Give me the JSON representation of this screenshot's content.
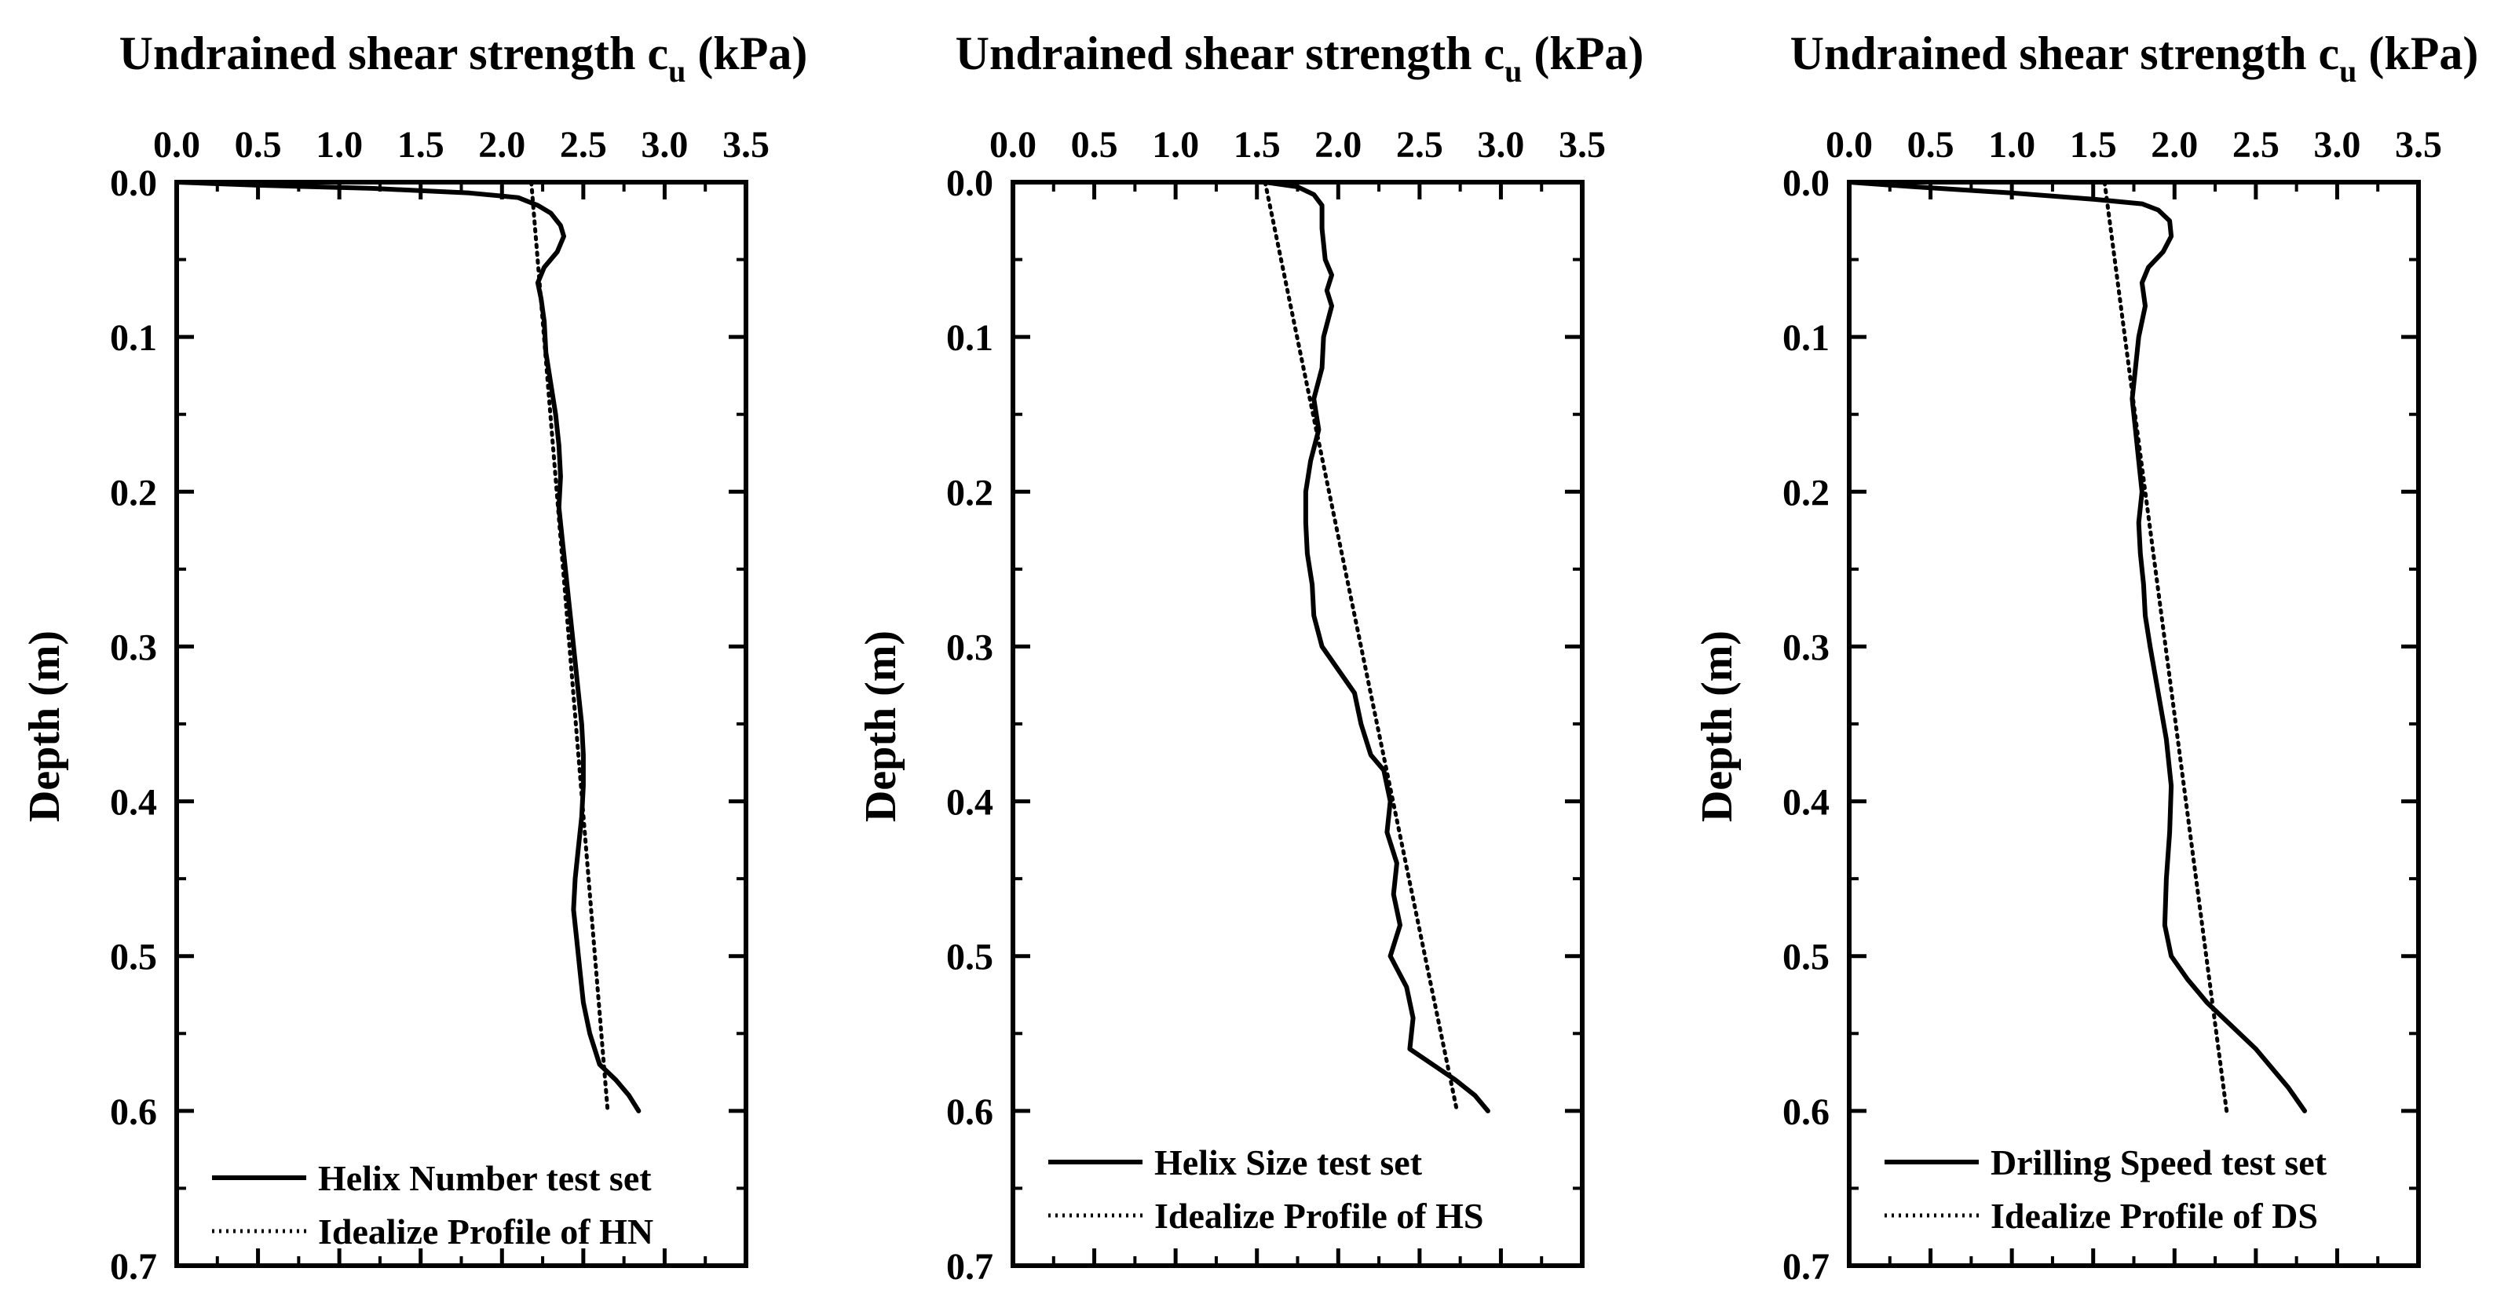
{
  "chart_data": [
    {
      "type": "line",
      "title": "Undrained shear strength c",
      "title_subscript": "u",
      "title_suffix": " (kPa)",
      "ylabel": "Depth (m)",
      "xlim": [
        0,
        3.5
      ],
      "ylim": [
        0,
        0.7
      ],
      "y_inverted": true,
      "x_axis_position": "top",
      "x_ticks": [
        "0.0",
        "0.5",
        "1.0",
        "1.5",
        "2.0",
        "2.5",
        "3.0",
        "3.5"
      ],
      "y_ticks": [
        "0.0",
        "0.1",
        "0.2",
        "0.3",
        "0.4",
        "0.5",
        "0.6",
        "0.7"
      ],
      "legend_position": "bottom-left",
      "series": [
        {
          "name": "Helix Number test set",
          "style": "solid",
          "points": [
            [
              0.0,
              0.0
            ],
            [
              0.5,
              0.002
            ],
            [
              1.2,
              0.004
            ],
            [
              1.8,
              0.007
            ],
            [
              2.1,
              0.01
            ],
            [
              2.22,
              0.015
            ],
            [
              2.3,
              0.02
            ],
            [
              2.36,
              0.028
            ],
            [
              2.38,
              0.035
            ],
            [
              2.34,
              0.045
            ],
            [
              2.26,
              0.055
            ],
            [
              2.22,
              0.065
            ],
            [
              2.24,
              0.075
            ],
            [
              2.26,
              0.09
            ],
            [
              2.27,
              0.11
            ],
            [
              2.3,
              0.13
            ],
            [
              2.33,
              0.15
            ],
            [
              2.35,
              0.17
            ],
            [
              2.36,
              0.19
            ],
            [
              2.35,
              0.21
            ],
            [
              2.37,
              0.23
            ],
            [
              2.39,
              0.25
            ],
            [
              2.41,
              0.27
            ],
            [
              2.43,
              0.29
            ],
            [
              2.45,
              0.31
            ],
            [
              2.47,
              0.33
            ],
            [
              2.49,
              0.35
            ],
            [
              2.5,
              0.37
            ],
            [
              2.5,
              0.39
            ],
            [
              2.49,
              0.41
            ],
            [
              2.47,
              0.43
            ],
            [
              2.45,
              0.45
            ],
            [
              2.44,
              0.47
            ],
            [
              2.46,
              0.49
            ],
            [
              2.48,
              0.51
            ],
            [
              2.5,
              0.53
            ],
            [
              2.54,
              0.55
            ],
            [
              2.6,
              0.57
            ],
            [
              2.7,
              0.58
            ],
            [
              2.78,
              0.59
            ],
            [
              2.84,
              0.6
            ]
          ]
        },
        {
          "name": "Idealize Profile of HN",
          "style": "dotted",
          "points": [
            [
              2.18,
              0.0
            ],
            [
              2.65,
              0.6
            ]
          ]
        }
      ]
    },
    {
      "type": "line",
      "title": "Undrained shear strength c",
      "title_subscript": "u",
      "title_suffix": " (kPa)",
      "ylabel": "Depth (m)",
      "xlim": [
        0,
        3.5
      ],
      "ylim": [
        0,
        0.7
      ],
      "y_inverted": true,
      "x_axis_position": "top",
      "x_ticks": [
        "0.0",
        "0.5",
        "1.0",
        "1.5",
        "2.0",
        "2.5",
        "3.0",
        "3.5"
      ],
      "y_ticks": [
        "0.0",
        "0.1",
        "0.2",
        "0.3",
        "0.4",
        "0.5",
        "0.6",
        "0.7"
      ],
      "legend_position": "bottom-left",
      "series": [
        {
          "name": "Helix Size test set",
          "style": "solid",
          "points": [
            [
              1.55,
              0.0
            ],
            [
              1.75,
              0.003
            ],
            [
              1.85,
              0.008
            ],
            [
              1.9,
              0.015
            ],
            [
              1.9,
              0.03
            ],
            [
              1.92,
              0.05
            ],
            [
              1.96,
              0.06
            ],
            [
              1.93,
              0.07
            ],
            [
              1.96,
              0.08
            ],
            [
              1.91,
              0.1
            ],
            [
              1.9,
              0.12
            ],
            [
              1.85,
              0.14
            ],
            [
              1.88,
              0.16
            ],
            [
              1.83,
              0.18
            ],
            [
              1.8,
              0.2
            ],
            [
              1.8,
              0.22
            ],
            [
              1.81,
              0.24
            ],
            [
              1.84,
              0.26
            ],
            [
              1.85,
              0.28
            ],
            [
              1.9,
              0.3
            ],
            [
              2.0,
              0.315
            ],
            [
              2.1,
              0.33
            ],
            [
              2.14,
              0.35
            ],
            [
              2.2,
              0.37
            ],
            [
              2.28,
              0.38
            ],
            [
              2.32,
              0.4
            ],
            [
              2.3,
              0.42
            ],
            [
              2.36,
              0.44
            ],
            [
              2.34,
              0.46
            ],
            [
              2.38,
              0.48
            ],
            [
              2.32,
              0.5
            ],
            [
              2.42,
              0.52
            ],
            [
              2.46,
              0.54
            ],
            [
              2.44,
              0.56
            ],
            [
              2.58,
              0.57
            ],
            [
              2.72,
              0.58
            ],
            [
              2.84,
              0.59
            ],
            [
              2.92,
              0.6
            ]
          ]
        },
        {
          "name": "Idealize Profile of HS",
          "style": "dotted",
          "points": [
            [
              1.55,
              0.0
            ],
            [
              2.73,
              0.6
            ]
          ]
        }
      ]
    },
    {
      "type": "line",
      "title": "Undrained shear strength c",
      "title_subscript": "u",
      "title_suffix": " (kPa)",
      "ylabel": "Depth (m)",
      "xlim": [
        0,
        3.5
      ],
      "ylim": [
        0,
        0.7
      ],
      "y_inverted": true,
      "x_axis_position": "top",
      "x_ticks": [
        "0.0",
        "0.5",
        "1.0",
        "1.5",
        "2.0",
        "2.5",
        "3.0",
        "3.5"
      ],
      "y_ticks": [
        "0.0",
        "0.1",
        "0.2",
        "0.3",
        "0.4",
        "0.5",
        "0.6",
        "0.7"
      ],
      "legend_position": "bottom-left",
      "series": [
        {
          "name": "Drilling Speed test set",
          "style": "solid",
          "points": [
            [
              0.0,
              0.0
            ],
            [
              0.4,
              0.003
            ],
            [
              1.0,
              0.007
            ],
            [
              1.5,
              0.011
            ],
            [
              1.8,
              0.014
            ],
            [
              1.9,
              0.018
            ],
            [
              1.97,
              0.025
            ],
            [
              1.98,
              0.035
            ],
            [
              1.93,
              0.045
            ],
            [
              1.84,
              0.055
            ],
            [
              1.8,
              0.065
            ],
            [
              1.82,
              0.08
            ],
            [
              1.78,
              0.1
            ],
            [
              1.76,
              0.12
            ],
            [
              1.74,
              0.14
            ],
            [
              1.76,
              0.16
            ],
            [
              1.78,
              0.18
            ],
            [
              1.8,
              0.2
            ],
            [
              1.78,
              0.22
            ],
            [
              1.79,
              0.24
            ],
            [
              1.81,
              0.26
            ],
            [
              1.82,
              0.28
            ],
            [
              1.85,
              0.3
            ],
            [
              1.9,
              0.33
            ],
            [
              1.95,
              0.36
            ],
            [
              1.98,
              0.39
            ],
            [
              1.97,
              0.42
            ],
            [
              1.95,
              0.45
            ],
            [
              1.94,
              0.48
            ],
            [
              1.98,
              0.5
            ],
            [
              2.08,
              0.515
            ],
            [
              2.2,
              0.53
            ],
            [
              2.35,
              0.545
            ],
            [
              2.5,
              0.56
            ],
            [
              2.62,
              0.575
            ],
            [
              2.7,
              0.585
            ],
            [
              2.8,
              0.6
            ]
          ]
        },
        {
          "name": "Idealize Profile of DS",
          "style": "dotted",
          "points": [
            [
              1.57,
              0.0
            ],
            [
              2.32,
              0.6
            ]
          ]
        }
      ]
    }
  ]
}
